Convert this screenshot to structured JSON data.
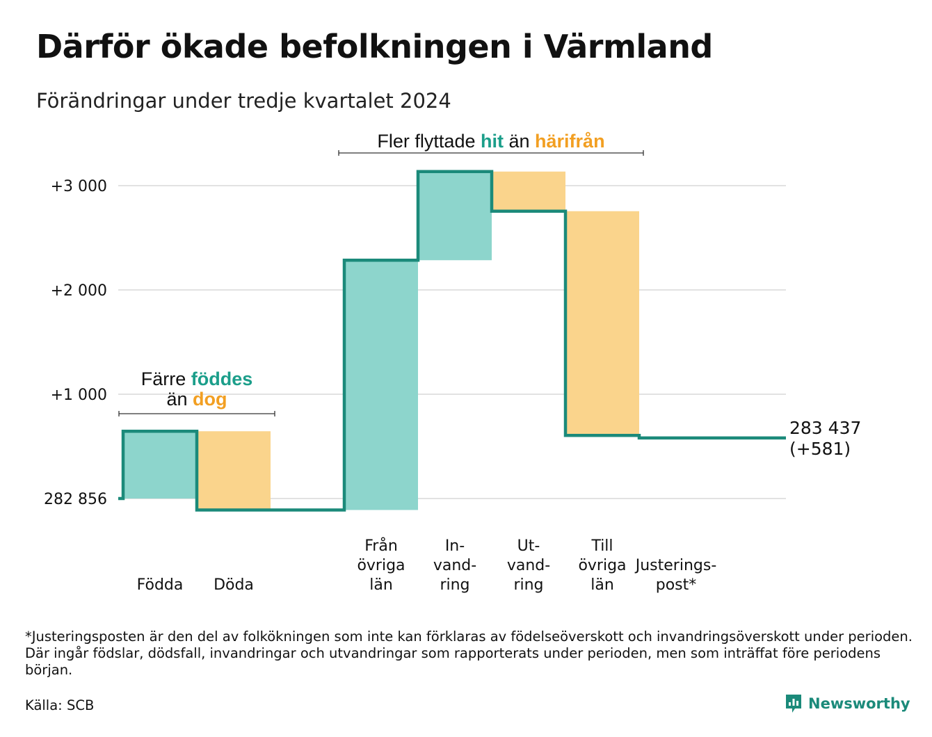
{
  "title": "Därför ökade befolkningen i Värmland",
  "subtitle": "Förändringar under tredje kvartalet 2024",
  "footnote": "*Justeringsposten är den del av folkökningen som inte kan förklaras av födelseöverskott och invandringsöverskott under perioden. Där ingår födslar, dödsfall, invandringar och utvandringar som rapporterats under perioden, men som inträffat före periodens början.",
  "source": "Källa: SCB",
  "brand": "Newsworthy",
  "colors": {
    "increase": "#8dd5cc",
    "decrease": "#fad48c",
    "line": "#1b8a7a",
    "accent_green": "#1b9e8a",
    "accent_orange": "#f29f22",
    "grid": "#e2e2e2"
  },
  "chart_data": {
    "type": "waterfall",
    "baseline_value": 282856,
    "baseline_label": "282 856",
    "yticks": [
      {
        "value": 0,
        "label": "282 856"
      },
      {
        "value": 1000,
        "label": "+1 000"
      },
      {
        "value": 2000,
        "label": "+2 000"
      },
      {
        "value": 3000,
        "label": "+3 000"
      }
    ],
    "ylim": [
      -130,
      3250
    ],
    "steps": [
      {
        "label": [
          "Födda"
        ],
        "change": 645,
        "kind": "increase"
      },
      {
        "label": [
          "Döda"
        ],
        "change": -755,
        "kind": "decrease"
      },
      {
        "label": [],
        "change": 0,
        "kind": "gap"
      },
      {
        "label": [
          "Från",
          "övriga",
          "län"
        ],
        "change": 2395,
        "kind": "increase"
      },
      {
        "label": [
          "In-",
          "vand-",
          "ring"
        ],
        "change": 850,
        "kind": "increase"
      },
      {
        "label": [
          "Ut-",
          "vand-",
          "ring"
        ],
        "change": -380,
        "kind": "decrease"
      },
      {
        "label": [
          "Till",
          "övriga",
          "län"
        ],
        "change": -2150,
        "kind": "decrease"
      },
      {
        "label": [
          "Justerings-",
          "post*"
        ],
        "change": -24,
        "kind": "decrease"
      }
    ],
    "end_value": 581,
    "end_label": [
      "283 437",
      "(+581)"
    ],
    "annotations": [
      {
        "text": [
          "Färre ",
          "föddes"
        ],
        "text2": [
          "än ",
          "dog"
        ],
        "spans": [
          0,
          1
        ]
      },
      {
        "text": [
          "Fler flyttade ",
          "hit",
          " än ",
          "härifrån"
        ],
        "spans": [
          3,
          6
        ]
      }
    ]
  }
}
